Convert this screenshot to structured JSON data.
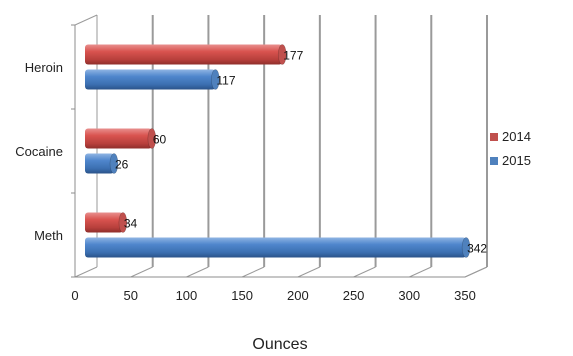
{
  "chart_data": {
    "type": "bar",
    "orientation": "horizontal",
    "title": "",
    "xlabel": "Ounces",
    "ylabel": "",
    "categories": [
      "Heroin",
      "Cocaine",
      "Meth"
    ],
    "series": [
      {
        "name": "2014",
        "values": [
          177,
          60,
          34
        ],
        "color": "#c0504d"
      },
      {
        "name": "2015",
        "values": [
          117,
          26,
          342
        ],
        "color": "#4f81bd"
      }
    ],
    "xlim": [
      0,
      350
    ],
    "xticks": [
      0,
      50,
      100,
      150,
      200,
      250,
      300,
      350
    ],
    "grid": true,
    "legend_position": "right",
    "style": "3d-cylinder"
  }
}
